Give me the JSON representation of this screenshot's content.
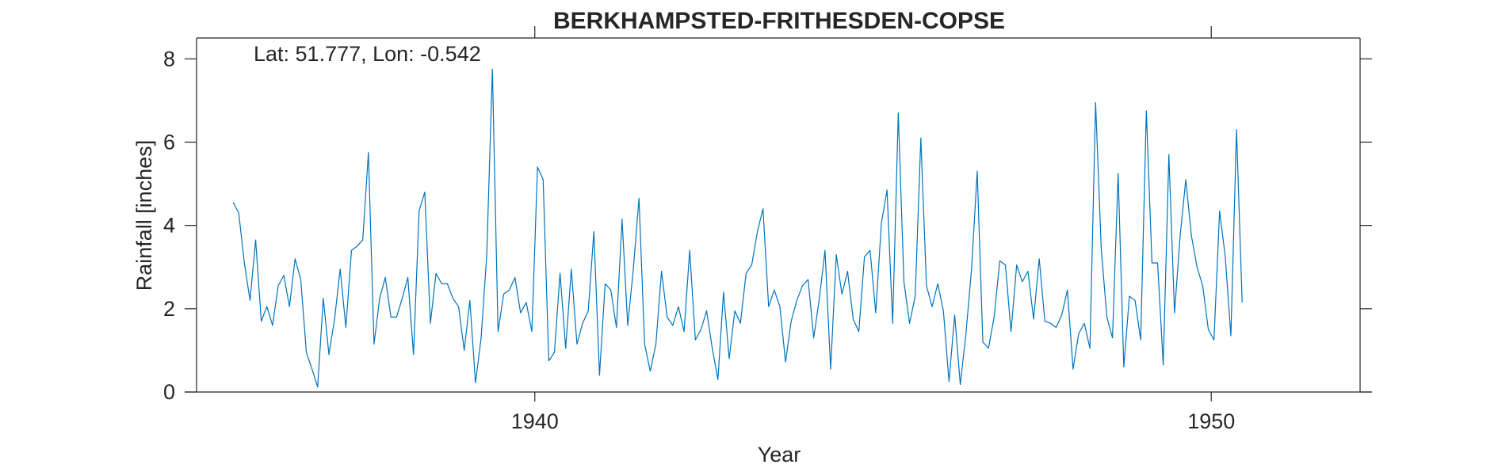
{
  "chart_data": {
    "type": "line",
    "title": "BERKHAMPSTED-FRITHESDEN-COPSE",
    "annotation": "Lat: 51.777, Lon: -0.542",
    "xlabel": "Year",
    "ylabel": "Rainfall [inches]",
    "xlim": [
      1935.0,
      1952.2
    ],
    "ylim": [
      0,
      8.5
    ],
    "x_ticks": [
      1940,
      1950
    ],
    "y_ticks": [
      0,
      2,
      4,
      6,
      8
    ],
    "grid": false,
    "box": true,
    "line_color": "#0072bd",
    "axis_color": "#262626",
    "series": [
      {
        "x_start": 1935.54,
        "x_step_months": 1,
        "values": [
          4.55,
          4.3,
          3.1,
          2.2,
          3.65,
          1.7,
          2.05,
          1.6,
          2.55,
          2.8,
          2.05,
          3.2,
          2.7,
          0.95,
          0.55,
          0.12,
          2.25,
          0.9,
          1.75,
          2.95,
          1.55,
          3.4,
          3.5,
          3.65,
          5.75,
          1.15,
          2.25,
          2.75,
          1.8,
          1.8,
          2.25,
          2.75,
          0.9,
          4.35,
          4.8,
          1.65,
          2.85,
          2.6,
          2.6,
          2.25,
          2.05,
          1.0,
          2.2,
          0.22,
          1.3,
          3.3,
          7.75,
          1.45,
          2.35,
          2.45,
          2.75,
          1.9,
          2.15,
          1.45,
          5.4,
          5.1,
          0.75,
          0.95,
          2.85,
          1.05,
          2.95,
          1.15,
          1.65,
          1.95,
          3.85,
          0.4,
          2.6,
          2.45,
          1.55,
          4.15,
          1.6,
          2.95,
          4.65,
          1.15,
          0.5,
          1.15,
          2.9,
          1.8,
          1.6,
          2.05,
          1.45,
          3.4,
          1.25,
          1.5,
          1.95,
          1.05,
          0.3,
          2.4,
          0.8,
          1.95,
          1.65,
          2.85,
          3.05,
          3.85,
          4.4,
          2.05,
          2.45,
          2.05,
          0.72,
          1.7,
          2.2,
          2.55,
          2.7,
          1.3,
          2.25,
          3.4,
          0.55,
          3.3,
          2.35,
          2.9,
          1.75,
          1.45,
          3.25,
          3.4,
          1.9,
          4.05,
          4.85,
          1.65,
          6.7,
          2.65,
          1.65,
          2.3,
          6.1,
          2.55,
          2.05,
          2.6,
          1.95,
          0.25,
          1.85,
          0.18,
          1.4,
          2.95,
          5.3,
          1.2,
          1.05,
          1.8,
          3.15,
          3.05,
          1.45,
          3.05,
          2.65,
          2.9,
          1.75,
          3.2,
          1.7,
          1.65,
          1.55,
          1.85,
          2.45,
          0.55,
          1.4,
          1.65,
          1.05,
          6.95,
          3.45,
          1.8,
          1.3,
          5.25,
          0.6,
          2.3,
          2.2,
          1.25,
          6.75,
          3.1,
          3.1,
          0.65,
          5.7,
          1.9,
          3.75,
          5.1,
          3.75,
          3.0,
          2.55,
          1.5,
          1.25,
          4.35,
          3.25,
          1.35,
          6.3,
          2.15
        ]
      }
    ]
  }
}
